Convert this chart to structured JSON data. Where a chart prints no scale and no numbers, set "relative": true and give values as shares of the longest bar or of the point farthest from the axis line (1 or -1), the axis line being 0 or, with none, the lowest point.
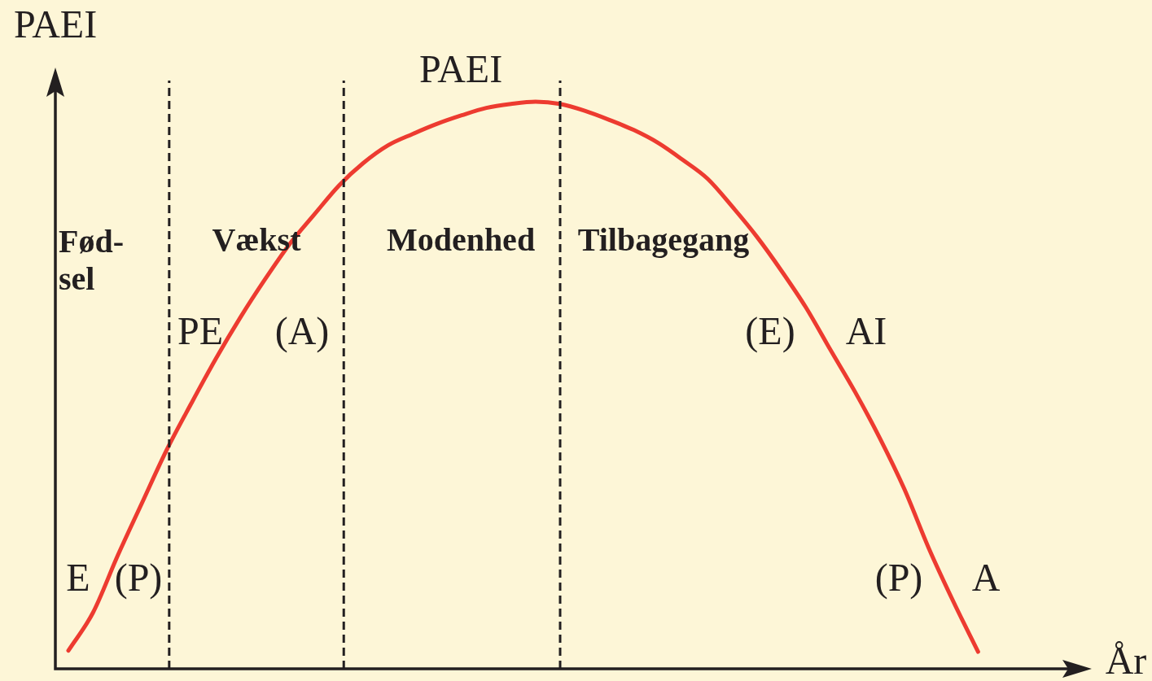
{
  "chart_data": {
    "type": "line",
    "xlabel": "År",
    "ylabel": "PAEI",
    "categories": [
      null,
      null,
      null,
      null,
      null,
      null,
      null,
      null,
      null,
      null,
      null,
      null,
      null,
      null,
      null,
      null,
      null,
      null,
      null,
      null,
      null,
      null,
      null,
      null,
      null,
      null,
      null,
      null,
      null,
      null,
      null,
      null,
      null,
      null,
      null,
      null,
      null,
      null
    ],
    "series": [
      {
        "color": "#ed3b30",
        "values": [
          0.032,
          0.099,
          0.199,
          0.293,
          0.386,
          0.468,
          0.547,
          0.62,
          0.687,
          0.749,
          0.801,
          0.852,
          0.892,
          0.923,
          0.943,
          0.961,
          0.976,
          0.989,
          0.996,
          1.0,
          0.996,
          0.984,
          0.968,
          0.95,
          0.927,
          0.897,
          0.864,
          0.815,
          0.762,
          0.702,
          0.637,
          0.562,
          0.488,
          0.407,
          0.317,
          0.212,
          0.118,
          0.03
        ]
      }
    ],
    "relative": true,
    "grid": false,
    "legend": false,
    "marker": "none",
    "line_style": "solid",
    "annotations": [
      "Fød-\nsel",
      "Vækst",
      "Modenhed",
      "Tilbagegang",
      "PAEI",
      "E",
      "(P)",
      "PE",
      "(A)",
      "(E)",
      "AI",
      "(P)",
      "A"
    ]
  }
}
